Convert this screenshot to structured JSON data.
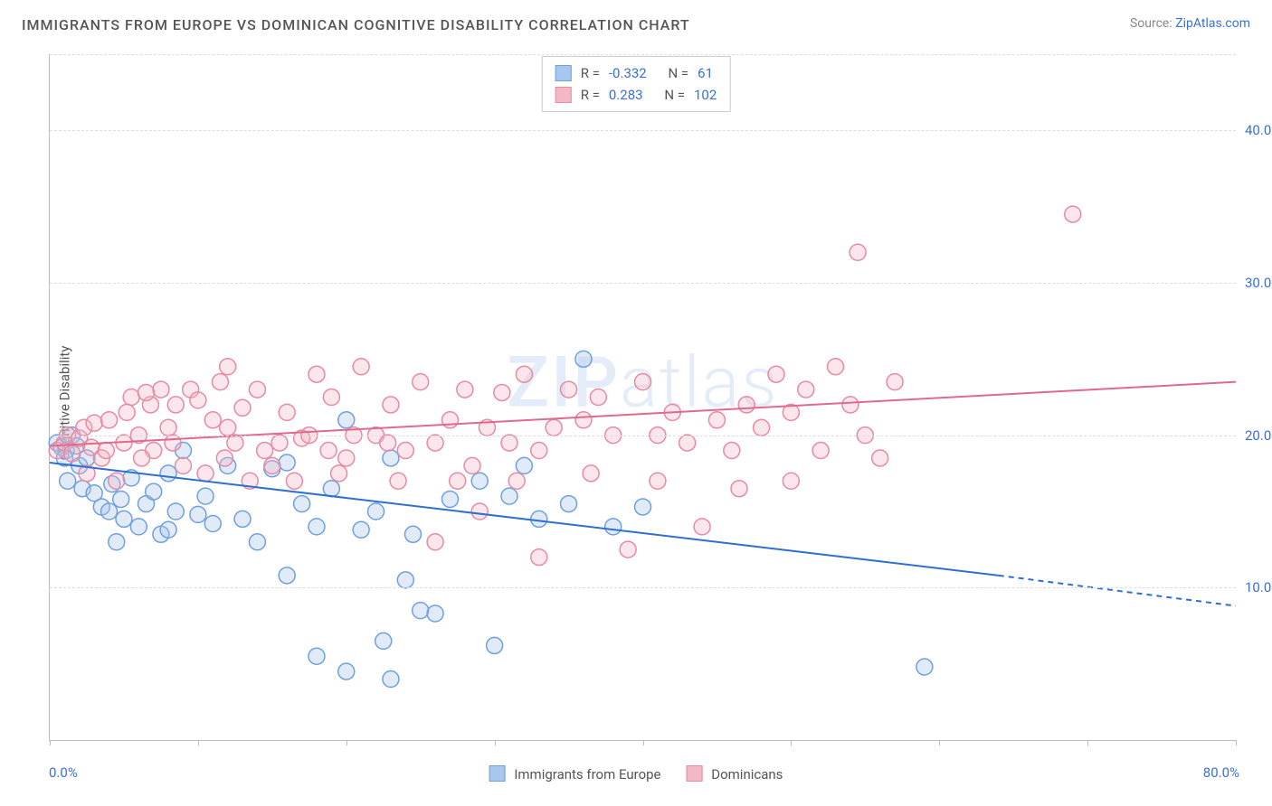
{
  "title": "IMMIGRANTS FROM EUROPE VS DOMINICAN COGNITIVE DISABILITY CORRELATION CHART",
  "source_label": "Source:",
  "source_name": "ZipAtlas.com",
  "ylabel": "Cognitive Disability",
  "watermark": "ZIPatlas",
  "chart": {
    "type": "scatter",
    "xlim": [
      0,
      80
    ],
    "ylim": [
      0,
      45
    ],
    "xtick_positions": [
      0,
      10,
      20,
      30,
      40,
      50,
      60,
      70,
      80
    ],
    "ytick_positions": [
      10,
      20,
      30,
      40
    ],
    "ytick_labels": [
      "10.0%",
      "20.0%",
      "30.0%",
      "40.0%"
    ],
    "x_axis_label_left": "0.0%",
    "x_axis_label_right": "80.0%",
    "background_color": "#ffffff",
    "grid_color": "#dddddd",
    "axis_color": "#bbbbbb",
    "marker_radius": 9,
    "marker_opacity": 0.35,
    "line_width": 2,
    "series": [
      {
        "name": "Immigrants from Europe",
        "color_fill": "#a9c7ec",
        "color_stroke": "#6fa0de",
        "line_color": "#2e6fd0",
        "r": -0.332,
        "n": 61,
        "regression": {
          "x1": 0,
          "y1": 18.2,
          "x2": 64,
          "y2": 10.8,
          "x2_dash": 80,
          "y2_dash": 8.8
        },
        "points": [
          [
            0.5,
            19.5
          ],
          [
            0.8,
            19.2
          ],
          [
            1.1,
            19.0
          ],
          [
            1.0,
            18.5
          ],
          [
            1.5,
            20.0
          ],
          [
            1.8,
            19.3
          ],
          [
            2.0,
            18.0
          ],
          [
            2.2,
            16.5
          ],
          [
            2.5,
            18.5
          ],
          [
            1.2,
            17.0
          ],
          [
            3.0,
            16.2
          ],
          [
            3.5,
            15.3
          ],
          [
            4.0,
            15.0
          ],
          [
            4.2,
            16.8
          ],
          [
            4.8,
            15.8
          ],
          [
            5.0,
            14.5
          ],
          [
            5.5,
            17.2
          ],
          [
            6.0,
            14.0
          ],
          [
            6.5,
            15.5
          ],
          [
            7.0,
            16.3
          ],
          [
            7.5,
            13.5
          ],
          [
            8.0,
            17.5
          ],
          [
            8.5,
            15.0
          ],
          [
            9.0,
            19.0
          ],
          [
            10.0,
            14.8
          ],
          [
            10.5,
            16.0
          ],
          [
            11.0,
            14.2
          ],
          [
            12.0,
            18.0
          ],
          [
            13.0,
            14.5
          ],
          [
            14.0,
            13.0
          ],
          [
            15.0,
            17.8
          ],
          [
            16.0,
            18.2
          ],
          [
            17.0,
            15.5
          ],
          [
            18.0,
            14.0
          ],
          [
            19.0,
            16.5
          ],
          [
            20.0,
            21.0
          ],
          [
            21.0,
            13.8
          ],
          [
            22.0,
            15.0
          ],
          [
            23.0,
            18.5
          ],
          [
            24.0,
            10.5
          ],
          [
            24.5,
            13.5
          ],
          [
            25.0,
            8.5
          ],
          [
            26.0,
            8.3
          ],
          [
            22.5,
            6.5
          ],
          [
            27.0,
            15.8
          ],
          [
            29.0,
            17.0
          ],
          [
            30.0,
            6.2
          ],
          [
            31.0,
            16.0
          ],
          [
            32.0,
            18.0
          ],
          [
            33.0,
            14.5
          ],
          [
            35.0,
            15.5
          ],
          [
            36.0,
            25.0
          ],
          [
            38.0,
            14.0
          ],
          [
            40.0,
            15.3
          ],
          [
            20.0,
            4.5
          ],
          [
            18.0,
            5.5
          ],
          [
            23.0,
            4.0
          ],
          [
            16.0,
            10.8
          ],
          [
            59.0,
            4.8
          ],
          [
            8.0,
            13.8
          ],
          [
            4.5,
            13.0
          ]
        ]
      },
      {
        "name": "Dominicans",
        "color_fill": "#f2b8c6",
        "color_stroke": "#e78aa3",
        "line_color": "#e06a8c",
        "r": 0.283,
        "n": 102,
        "regression": {
          "x1": 0,
          "y1": 19.3,
          "x2": 80,
          "y2": 23.5
        },
        "points": [
          [
            0.5,
            19.0
          ],
          [
            1.0,
            19.5
          ],
          [
            1.2,
            20.0
          ],
          [
            1.5,
            18.8
          ],
          [
            2.0,
            19.8
          ],
          [
            2.3,
            20.5
          ],
          [
            2.8,
            19.2
          ],
          [
            3.0,
            20.8
          ],
          [
            3.5,
            18.5
          ],
          [
            4.0,
            21.0
          ],
          [
            5.0,
            19.5
          ],
          [
            5.5,
            22.5
          ],
          [
            6.0,
            20.0
          ],
          [
            6.8,
            22.0
          ],
          [
            7.0,
            19.0
          ],
          [
            7.5,
            23.0
          ],
          [
            8.0,
            20.5
          ],
          [
            8.5,
            22.0
          ],
          [
            6.5,
            22.8
          ],
          [
            9.5,
            23.0
          ],
          [
            10.0,
            22.3
          ],
          [
            11.0,
            21.0
          ],
          [
            11.5,
            23.5
          ],
          [
            12.0,
            20.5
          ],
          [
            12.5,
            19.5
          ],
          [
            13.0,
            21.8
          ],
          [
            14.0,
            23.0
          ],
          [
            15.0,
            18.0
          ],
          [
            16.0,
            21.5
          ],
          [
            17.0,
            19.8
          ],
          [
            18.0,
            24.0
          ],
          [
            19.0,
            22.5
          ],
          [
            20.0,
            18.5
          ],
          [
            21.0,
            24.5
          ],
          [
            22.0,
            20.0
          ],
          [
            23.0,
            22.0
          ],
          [
            24.0,
            19.0
          ],
          [
            25.0,
            23.5
          ],
          [
            26.0,
            19.5
          ],
          [
            27.0,
            21.0
          ],
          [
            28.0,
            23.0
          ],
          [
            28.5,
            18.0
          ],
          [
            29.5,
            20.5
          ],
          [
            30.5,
            22.8
          ],
          [
            31.0,
            19.5
          ],
          [
            32.0,
            24.0
          ],
          [
            33.0,
            19.0
          ],
          [
            34.0,
            20.5
          ],
          [
            35.0,
            23.0
          ],
          [
            36.0,
            21.0
          ],
          [
            37.0,
            22.5
          ],
          [
            38.0,
            20.0
          ],
          [
            39.0,
            12.5
          ],
          [
            40.0,
            23.5
          ],
          [
            41.0,
            20.0
          ],
          [
            42.0,
            21.5
          ],
          [
            43.0,
            19.5
          ],
          [
            44.0,
            14.0
          ],
          [
            45.0,
            21.0
          ],
          [
            46.0,
            19.0
          ],
          [
            47.0,
            22.0
          ],
          [
            48.0,
            20.5
          ],
          [
            49.0,
            24.0
          ],
          [
            50.0,
            21.5
          ],
          [
            51.0,
            23.0
          ],
          [
            52.0,
            19.0
          ],
          [
            53.0,
            24.5
          ],
          [
            54.0,
            22.0
          ],
          [
            55.0,
            20.0
          ],
          [
            54.5,
            32.0
          ],
          [
            56.0,
            18.5
          ],
          [
            57.0,
            23.5
          ],
          [
            29.0,
            15.0
          ],
          [
            26.0,
            13.0
          ],
          [
            33.0,
            12.0
          ],
          [
            69.0,
            34.5
          ],
          [
            50.0,
            17.0
          ],
          [
            2.5,
            17.5
          ],
          [
            4.5,
            17.0
          ],
          [
            9.0,
            18.0
          ],
          [
            10.5,
            17.5
          ],
          [
            13.5,
            17.0
          ],
          [
            16.5,
            17.0
          ],
          [
            19.5,
            17.5
          ],
          [
            23.5,
            17.0
          ],
          [
            27.5,
            17.0
          ],
          [
            31.5,
            17.0
          ],
          [
            36.5,
            17.5
          ],
          [
            41.0,
            17.0
          ],
          [
            46.5,
            16.5
          ],
          [
            12.0,
            24.5
          ],
          [
            14.5,
            19.0
          ],
          [
            17.5,
            20.0
          ],
          [
            20.5,
            20.0
          ],
          [
            5.2,
            21.5
          ],
          [
            3.8,
            19.0
          ],
          [
            6.2,
            18.5
          ],
          [
            8.3,
            19.5
          ],
          [
            11.8,
            18.5
          ],
          [
            15.5,
            19.5
          ],
          [
            18.8,
            19.0
          ],
          [
            22.8,
            19.5
          ]
        ]
      }
    ]
  },
  "legend_bottom": [
    {
      "label": "Immigrants from Europe",
      "fill": "#a9c7ec",
      "stroke": "#6fa0de"
    },
    {
      "label": "Dominicans",
      "fill": "#f2b8c6",
      "stroke": "#e78aa3"
    }
  ],
  "stats_labels": {
    "r": "R =",
    "n": "N ="
  }
}
